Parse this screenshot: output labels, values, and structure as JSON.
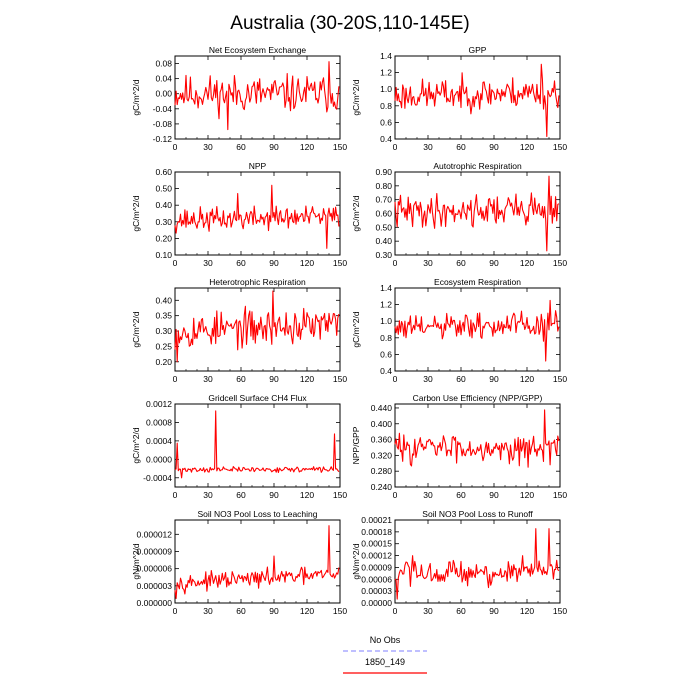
{
  "page_title": "Australia (30-20S,110-145E)",
  "colors": {
    "series_color": "#ff0000",
    "obs_color": "#9999ff",
    "axis_color": "#000000"
  },
  "chart_data": [
    {
      "type": "line",
      "title": "Net Ecosystem Exchange",
      "ylabel": "gC/m^2/d",
      "x_range": [
        0,
        149
      ],
      "xlim": [
        0,
        150
      ],
      "ylim": [
        -0.12,
        0.1
      ],
      "xticks": [
        "0",
        "30",
        "60",
        "90",
        "120",
        "150"
      ],
      "yticks": [
        "-0.12",
        "-0.08",
        "-0.04",
        "0.00",
        "0.04",
        "0.08"
      ],
      "series": [
        {
          "values": []
        }
      ],
      "seed": 11,
      "gen": {
        "mean": 0.0,
        "amp": 0.042,
        "trend": 0.0,
        "spikes": [
          [
            140,
            0.085
          ],
          [
            48,
            -0.095
          ]
        ]
      }
    },
    {
      "type": "line",
      "title": "GPP",
      "ylabel": "gC/m^2/d",
      "x_range": [
        0,
        149
      ],
      "xlim": [
        0,
        150
      ],
      "ylim": [
        0.4,
        1.4
      ],
      "xticks": [
        "0",
        "30",
        "60",
        "90",
        "120",
        "150"
      ],
      "yticks": [
        "0.4",
        "0.6",
        "0.8",
        "1.0",
        "1.2",
        "1.4"
      ],
      "series": [
        {
          "values": []
        }
      ],
      "seed": 23,
      "gen": {
        "mean": 0.92,
        "amp": 0.16,
        "trend": 0.05,
        "spikes": [
          [
            138,
            0.43
          ],
          [
            133,
            1.3
          ]
        ]
      }
    },
    {
      "type": "line",
      "title": "NPP",
      "ylabel": "gC/m^2/d",
      "x_range": [
        0,
        149
      ],
      "xlim": [
        0,
        150
      ],
      "ylim": [
        0.1,
        0.6
      ],
      "xticks": [
        "0",
        "30",
        "60",
        "90",
        "120",
        "150"
      ],
      "yticks": [
        "0.10",
        "0.20",
        "0.30",
        "0.40",
        "0.50",
        "0.60"
      ],
      "series": [
        {
          "values": []
        }
      ],
      "seed": 37,
      "gen": {
        "mean": 0.31,
        "amp": 0.06,
        "trend": 0.02,
        "spikes": [
          [
            88,
            0.52
          ],
          [
            57,
            0.47
          ],
          [
            138,
            0.14
          ]
        ]
      }
    },
    {
      "type": "line",
      "title": "Autotrophic Respiration",
      "ylabel": "gC/m^2/d",
      "x_range": [
        0,
        149
      ],
      "xlim": [
        0,
        150
      ],
      "ylim": [
        0.3,
        0.9
      ],
      "xticks": [
        "0",
        "30",
        "60",
        "90",
        "120",
        "150"
      ],
      "yticks": [
        "0.30",
        "0.40",
        "0.50",
        "0.60",
        "0.70",
        "0.80",
        "0.90"
      ],
      "series": [
        {
          "values": []
        }
      ],
      "seed": 41,
      "gen": {
        "mean": 0.61,
        "amp": 0.1,
        "trend": 0.03,
        "spikes": [
          [
            140,
            0.87
          ],
          [
            138,
            0.33
          ]
        ]
      }
    },
    {
      "type": "line",
      "title": "Heterotrophic Respiration",
      "ylabel": "gC/m^2/d",
      "x_range": [
        0,
        149
      ],
      "xlim": [
        0,
        150
      ],
      "ylim": [
        0.17,
        0.44
      ],
      "xticks": [
        "0",
        "30",
        "60",
        "90",
        "120",
        "150"
      ],
      "yticks": [
        "0.20",
        "0.25",
        "0.30",
        "0.35",
        "0.40"
      ],
      "series": [
        {
          "values": []
        }
      ],
      "seed": 53,
      "gen": {
        "mean": 0.3,
        "amp": 0.05,
        "trend": 0.02,
        "spikes": [
          [
            89,
            0.43
          ],
          [
            2,
            0.2
          ]
        ]
      }
    },
    {
      "type": "line",
      "title": "Ecosystem Respiration",
      "ylabel": "gC/m^2/d",
      "x_range": [
        0,
        149
      ],
      "xlim": [
        0,
        150
      ],
      "ylim": [
        0.4,
        1.4
      ],
      "xticks": [
        "0",
        "30",
        "60",
        "90",
        "120",
        "150"
      ],
      "yticks": [
        "0.4",
        "0.6",
        "0.8",
        "1.0",
        "1.2",
        "1.4"
      ],
      "series": [
        {
          "values": []
        }
      ],
      "seed": 61,
      "gen": {
        "mean": 0.91,
        "amp": 0.14,
        "trend": 0.05,
        "spikes": [
          [
            137,
            0.52
          ],
          [
            141,
            1.25
          ]
        ]
      }
    },
    {
      "type": "line",
      "title": "Gridcell Surface CH4 Flux",
      "ylabel": "gC/m^2/d",
      "x_range": [
        0,
        149
      ],
      "xlim": [
        0,
        150
      ],
      "ylim": [
        -0.0006,
        0.0012
      ],
      "xticks": [
        "0",
        "30",
        "60",
        "90",
        "120",
        "150"
      ],
      "yticks": [
        "-0.0004",
        "0.0000",
        "0.0004",
        "0.0008",
        "0.0012"
      ],
      "series": [
        {
          "values": []
        }
      ],
      "seed": 71,
      "gen": {
        "mean": -0.00022,
        "amp": 5e-05,
        "trend": 0.0,
        "spikes": [
          [
            37,
            0.00105
          ],
          [
            2,
            0.00035
          ],
          [
            145,
            0.00055
          ],
          [
            6,
            -0.0004
          ]
        ]
      }
    },
    {
      "type": "line",
      "title": "Carbon Use Efficiency (NPP/GPP)",
      "ylabel": "NPP/GPP",
      "x_range": [
        0,
        149
      ],
      "xlim": [
        0,
        150
      ],
      "ylim": [
        0.24,
        0.45
      ],
      "xticks": [
        "0",
        "30",
        "60",
        "90",
        "120",
        "150"
      ],
      "yticks": [
        "0.240",
        "0.280",
        "0.320",
        "0.360",
        "0.400",
        "0.440"
      ],
      "series": [
        {
          "values": []
        }
      ],
      "seed": 83,
      "gen": {
        "mean": 0.34,
        "amp": 0.03,
        "trend": 0.0,
        "spikes": [
          [
            136,
            0.435
          ],
          [
            121,
            0.29
          ]
        ]
      }
    },
    {
      "type": "line",
      "title": "Soil NO3 Pool Loss to Leaching",
      "ylabel": "gN/m^2/d",
      "x_range": [
        0,
        149
      ],
      "xlim": [
        0,
        150
      ],
      "ylim": [
        0.0,
        1.45e-05
      ],
      "xticks": [
        "0",
        "30",
        "60",
        "90",
        "120",
        "150"
      ],
      "yticks": [
        "0.000000",
        "0.000003",
        "0.000006",
        "0.000009",
        "0.000012"
      ],
      "series": [
        {
          "values": []
        }
      ],
      "seed": 97,
      "gen": {
        "mean": 3.5e-06,
        "amp": 1.2e-06,
        "trend": 1.5e-06,
        "spikes": [
          [
            140,
            1.35e-05
          ],
          [
            1,
            8e-07
          ],
          [
            90,
            8.2e-06
          ]
        ],
        "floor": 3e-07
      }
    },
    {
      "type": "line",
      "title": "Soil NO3 Pool Loss to Runoff",
      "ylabel": "gN/m^2/d",
      "x_range": [
        0,
        149
      ],
      "xlim": [
        0,
        150
      ],
      "ylim": [
        0.0,
        0.00021
      ],
      "xticks": [
        "0",
        "30",
        "60",
        "90",
        "120",
        "150"
      ],
      "yticks": [
        "0.00000",
        "0.00003",
        "0.00006",
        "0.00009",
        "0.00012",
        "0.00015",
        "0.00018",
        "0.00021"
      ],
      "series": [
        {
          "values": []
        }
      ],
      "seed": 103,
      "gen": {
        "mean": 7e-05,
        "amp": 3e-05,
        "trend": 1e-05,
        "spikes": [
          [
            128,
            0.000188
          ],
          [
            140,
            0.000188
          ],
          [
            2,
            1e-05
          ]
        ],
        "floor": 5e-06
      }
    }
  ],
  "legend": [
    {
      "label": "No Obs",
      "color": "#9999ff",
      "dash": true
    },
    {
      "label": "1850_149",
      "color": "#ff0000",
      "dash": false
    }
  ]
}
